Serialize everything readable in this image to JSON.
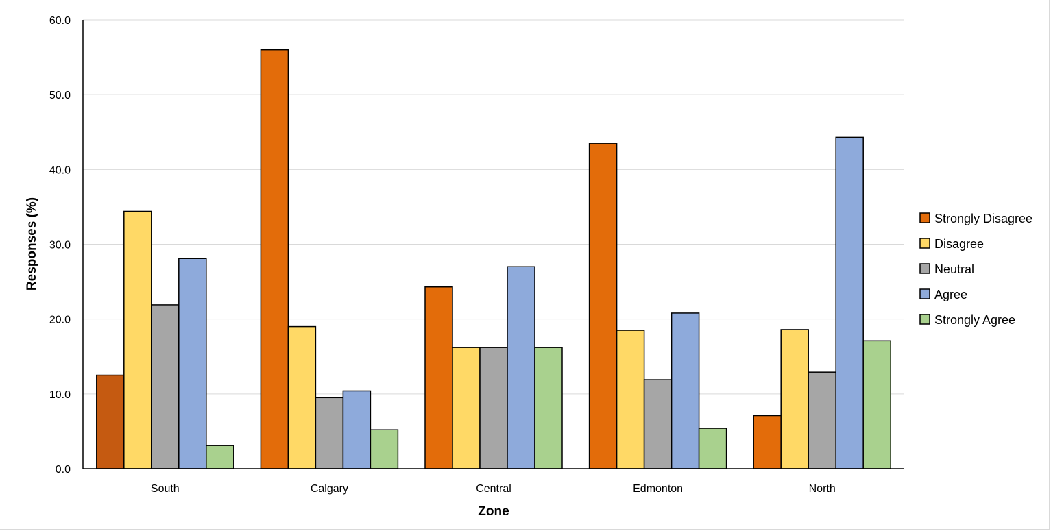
{
  "chart_data": {
    "type": "bar",
    "title": "",
    "xlabel": "Zone",
    "ylabel": "Responses (%)",
    "ylim": [
      0,
      60
    ],
    "yticks": [
      "0.0",
      "10.0",
      "20.0",
      "30.0",
      "40.0",
      "50.0",
      "60.0"
    ],
    "grid": true,
    "legend_position": "right",
    "categories": [
      "South",
      "Calgary",
      "Central",
      "Edmonton",
      "North"
    ],
    "series": [
      {
        "name": "Strongly Disagree",
        "color": "#e36c0a",
        "values": [
          12.5,
          56.0,
          24.3,
          43.5,
          7.1
        ]
      },
      {
        "name": "Disagree",
        "color": "#ffd966",
        "values": [
          34.4,
          19.0,
          16.2,
          18.5,
          18.6
        ]
      },
      {
        "name": "Neutral",
        "color": "#a6a6a6",
        "values": [
          21.9,
          9.5,
          16.2,
          11.9,
          12.9
        ]
      },
      {
        "name": "Agree",
        "color": "#8eaadb",
        "values": [
          28.1,
          10.4,
          27.0,
          20.8,
          44.3
        ]
      },
      {
        "name": "Strongly Agree",
        "color": "#a9d18e",
        "values": [
          3.1,
          5.2,
          16.2,
          5.4,
          17.1
        ]
      }
    ],
    "highlight": {
      "series": 0,
      "category": 0,
      "color": "#c55a11"
    }
  }
}
